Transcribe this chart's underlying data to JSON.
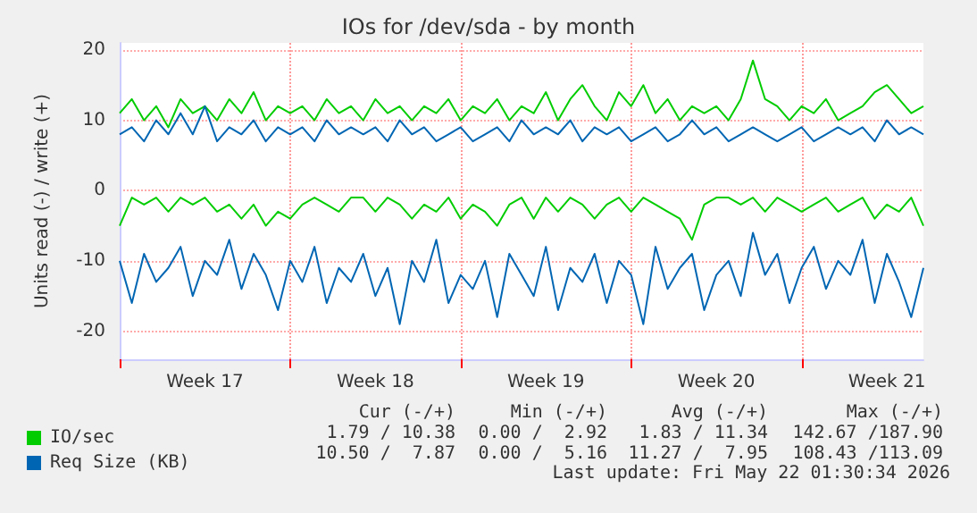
{
  "chart_data": {
    "type": "line",
    "title": "IOs for /dev/sda - by month",
    "ylabel": "Units read (-) / write (+)",
    "categories": [
      null,
      null,
      null,
      null,
      null,
      null,
      null,
      "Week 17",
      null,
      null,
      null,
      null,
      null,
      null,
      null,
      null,
      null,
      null,
      null,
      null,
      null,
      "Week 18",
      null,
      null,
      null,
      null,
      null,
      null,
      null,
      null,
      null,
      null,
      null,
      null,
      null,
      "Week 19",
      null,
      null,
      null,
      null,
      null,
      null,
      null,
      null,
      null,
      null,
      null,
      null,
      null,
      "Week 20",
      null,
      null,
      null,
      null,
      null,
      null,
      null,
      null,
      null,
      null,
      null,
      null,
      null,
      "Week 21",
      null,
      null,
      null
    ],
    "series": [
      {
        "name": "IO/sec",
        "color": "#00cc00",
        "values": [
          11,
          13,
          10,
          12,
          9,
          13,
          11,
          12,
          10,
          13,
          11,
          14,
          10,
          12,
          11,
          12,
          10,
          13,
          11,
          12,
          10,
          13,
          11,
          12,
          10,
          12,
          11,
          13,
          10,
          12,
          11,
          13,
          10,
          12,
          11,
          14,
          10,
          13,
          15,
          12,
          10,
          14,
          12,
          15,
          11,
          13,
          10,
          12,
          11,
          12,
          10,
          13,
          18.5,
          13,
          12,
          10,
          12,
          11,
          13,
          10,
          11,
          12,
          14,
          15,
          13,
          11,
          12
        ]
      },
      {
        "color": "#00cc00",
        "values": [
          -5,
          -1,
          -2,
          -1,
          -3,
          -1,
          -2,
          -1,
          -3,
          -2,
          -4,
          -2,
          -5,
          -3,
          -4,
          -2,
          -1,
          -2,
          -3,
          -1,
          -1,
          -3,
          -1,
          -2,
          -4,
          -2,
          -3,
          -1,
          -4,
          -2,
          -3,
          -5,
          -2,
          -1,
          -4,
          -1,
          -3,
          -1,
          -2,
          -4,
          -2,
          -1,
          -3,
          -1,
          -2,
          -3,
          -4,
          -7,
          -2,
          -1,
          -1,
          -2,
          -1,
          -3,
          -1,
          -2,
          -3,
          -2,
          -1,
          -3,
          -2,
          -1,
          -4,
          -2,
          -3,
          -1,
          -5
        ]
      },
      {
        "name": "Req Size (KB)",
        "color": "#0066b3",
        "values": [
          8,
          9,
          7,
          10,
          8,
          11,
          8,
          12,
          7,
          9,
          8,
          10,
          7,
          9,
          8,
          9,
          7,
          10,
          8,
          9,
          8,
          9,
          7,
          10,
          8,
          9,
          7,
          8,
          9,
          7,
          8,
          9,
          7,
          10,
          8,
          9,
          8,
          10,
          7,
          9,
          8,
          9,
          7,
          8,
          9,
          7,
          8,
          10,
          8,
          9,
          7,
          8,
          9,
          8,
          7,
          8,
          9,
          7,
          8,
          9,
          8,
          9,
          7,
          10,
          8,
          9,
          8
        ]
      },
      {
        "color": "#0066b3",
        "values": [
          -10,
          -16,
          -9,
          -13,
          -11,
          -8,
          -15,
          -10,
          -12,
          -7,
          -14,
          -9,
          -12,
          -17,
          -10,
          -13,
          -8,
          -16,
          -11,
          -13,
          -9,
          -15,
          -11,
          -19,
          -10,
          -13,
          -7,
          -16,
          -12,
          -14,
          -10,
          -18,
          -9,
          -12,
          -15,
          -8,
          -17,
          -11,
          -13,
          -9,
          -16,
          -10,
          -12,
          -19,
          -8,
          -14,
          -11,
          -9,
          -17,
          -12,
          -10,
          -15,
          -6,
          -12,
          -9,
          -16,
          -11,
          -8,
          -14,
          -10,
          -12,
          -7,
          -16,
          -9,
          -13,
          -18,
          -11
        ]
      }
    ],
    "ylim": [
      -24,
      21
    ],
    "yticks": [
      -20,
      -10,
      0,
      10,
      20
    ],
    "grid": true,
    "legend": "bottom left",
    "marker": "none",
    "line_style": "solid",
    "annotations": [
      "Cur (-/+)",
      "Min (-/+)",
      "Avg (-/+)",
      "Max (-/+)",
      "1.79 / 10.38",
      "0.00 /  2.92",
      "1.83 / 11.34",
      "142.67 /187.90",
      "10.50 /  7.87",
      "0.00 /  5.16",
      "11.27 /  7.95",
      "108.43 /113.09",
      "Last update: Fri May 22 01:30:34 2026"
    ]
  }
}
